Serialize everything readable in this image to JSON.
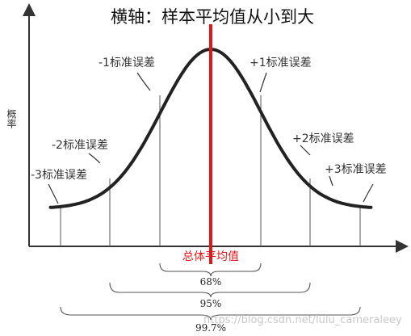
{
  "chart_data": {
    "type": "diagram",
    "title": "横轴：样本平均值从小到大",
    "ylabel": "概率",
    "center_label": "总体平均值",
    "sigma_labels": {
      "m1": "-1标准误差",
      "p1": "+1标准误差",
      "m2": "-2标准误差",
      "p2": "+2标准误差",
      "m3": "-3标准误差",
      "p3": "+3标准误差"
    },
    "coverage": [
      {
        "range": "±1",
        "label": "68%"
      },
      {
        "range": "±2",
        "label": "95%"
      },
      {
        "range": "±3",
        "label": "99.7%"
      }
    ],
    "watermark": "https://blog.csdn.net/lulu_cameraleey"
  },
  "colors": {
    "curve": "#222222",
    "axis": "#333333",
    "mean_line": "#e3161b",
    "label_text": "#333333"
  }
}
